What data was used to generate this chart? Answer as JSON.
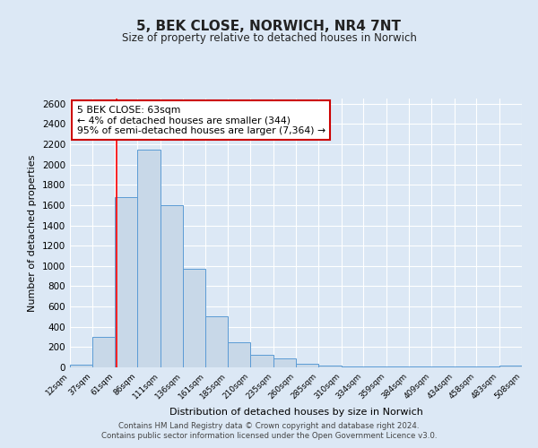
{
  "title": "5, BEK CLOSE, NORWICH, NR4 7NT",
  "subtitle": "Size of property relative to detached houses in Norwich",
  "xlabel": "Distribution of detached houses by size in Norwich",
  "ylabel": "Number of detached properties",
  "bin_edges": [
    12,
    37,
    61,
    86,
    111,
    136,
    161,
    185,
    210,
    235,
    260,
    285,
    310,
    334,
    359,
    384,
    409,
    434,
    458,
    483,
    508
  ],
  "bar_heights": [
    25,
    300,
    1680,
    2150,
    1600,
    975,
    500,
    250,
    120,
    90,
    35,
    15,
    5,
    5,
    5,
    5,
    5,
    5,
    5,
    15
  ],
  "tick_labels": [
    "12sqm",
    "37sqm",
    "61sqm",
    "86sqm",
    "111sqm",
    "136sqm",
    "161sqm",
    "185sqm",
    "210sqm",
    "235sqm",
    "260sqm",
    "285sqm",
    "310sqm",
    "334sqm",
    "359sqm",
    "384sqm",
    "409sqm",
    "434sqm",
    "458sqm",
    "483sqm",
    "508sqm"
  ],
  "bar_color": "#c8d8e8",
  "bar_edge_color": "#5b9bd5",
  "red_line_x": 63,
  "ylim": [
    0,
    2650
  ],
  "yticks": [
    0,
    200,
    400,
    600,
    800,
    1000,
    1200,
    1400,
    1600,
    1800,
    2000,
    2200,
    2400,
    2600
  ],
  "annotation_title": "5 BEK CLOSE: 63sqm",
  "annotation_line1": "← 4% of detached houses are smaller (344)",
  "annotation_line2": "95% of semi-detached houses are larger (7,364) →",
  "annotation_box_color": "#ffffff",
  "annotation_box_edge": "#cc0000",
  "footer1": "Contains HM Land Registry data © Crown copyright and database right 2024.",
  "footer2": "Contains public sector information licensed under the Open Government Licence v3.0.",
  "bg_color": "#dce8f5",
  "grid_color": "#ffffff"
}
